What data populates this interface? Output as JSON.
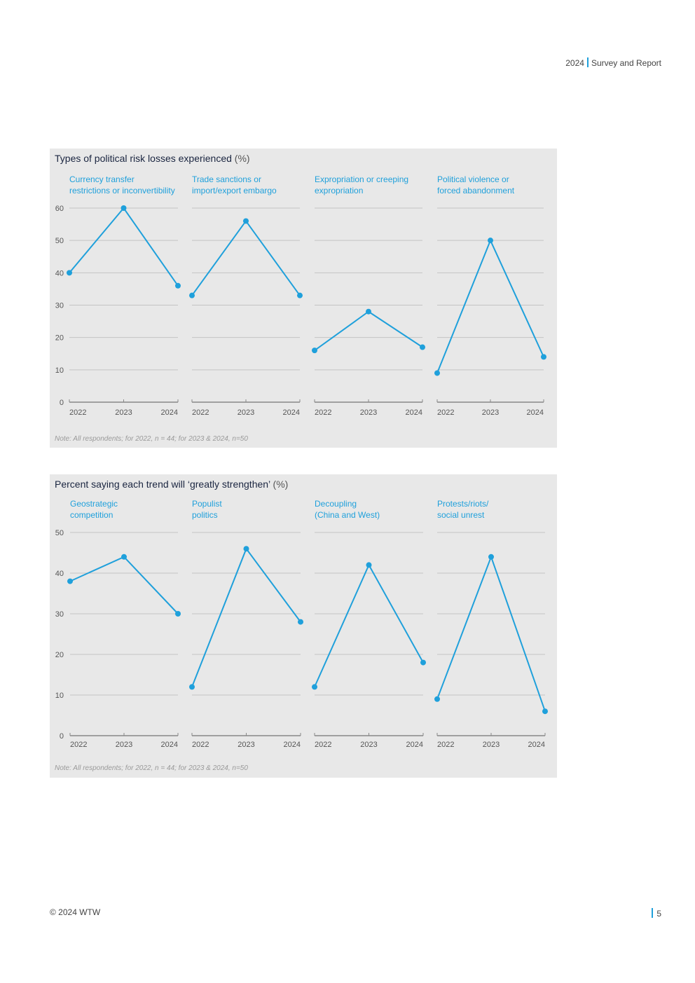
{
  "header": {
    "year": "2024",
    "title": "Survey and Report"
  },
  "footer": {
    "copyright": "© 2024 WTW",
    "page": "5"
  },
  "colors": {
    "accent": "#1fa0db",
    "panel_bg": "#e8e8e8",
    "grid": "#c4c4c4"
  },
  "chart_data": [
    {
      "type": "line",
      "title": "Types of political risk losses experienced",
      "title_unit": "(%)",
      "note": "Note: All respondents; for 2022, n = 44; for 2023 & 2024, n=50",
      "ylim": [
        0,
        60
      ],
      "yticks": [
        "0",
        "10",
        "20",
        "30",
        "40",
        "50",
        "60"
      ],
      "x": [
        "2022",
        "2023",
        "2024"
      ],
      "grid": true,
      "series": [
        {
          "label_lines": [
            "Currency transfer",
            "restrictions or inconvertibility"
          ],
          "values": [
            40,
            60,
            36
          ]
        },
        {
          "label_lines": [
            "Trade sanctions or",
            "import/export embargo"
          ],
          "values": [
            33,
            56,
            33
          ]
        },
        {
          "label_lines": [
            "Expropriation or creeping",
            "expropriation"
          ],
          "values": [
            16,
            28,
            17
          ]
        },
        {
          "label_lines": [
            "Political violence or",
            "forced abandonment"
          ],
          "values": [
            9,
            50,
            14
          ]
        }
      ]
    },
    {
      "type": "line",
      "title": "Percent saying each trend will ‘greatly strengthen’",
      "title_unit": "(%)",
      "note": "Note: All respondents; for 2022, n = 44; for 2023 & 2024, n=50",
      "ylim": [
        0,
        50
      ],
      "yticks": [
        "0",
        "10",
        "20",
        "30",
        "40",
        "50"
      ],
      "x": [
        "2022",
        "2023",
        "2024"
      ],
      "grid": true,
      "series": [
        {
          "label_lines": [
            "Geostrategic",
            "competition"
          ],
          "values": [
            38,
            44,
            30
          ]
        },
        {
          "label_lines": [
            "Populist",
            "politics"
          ],
          "values": [
            12,
            46,
            28
          ]
        },
        {
          "label_lines": [
            "Decoupling",
            "(China and West)"
          ],
          "values": [
            12,
            42,
            18
          ]
        },
        {
          "label_lines": [
            "Protests/riots/",
            "social unrest"
          ],
          "values": [
            9,
            44,
            6
          ]
        }
      ]
    }
  ]
}
